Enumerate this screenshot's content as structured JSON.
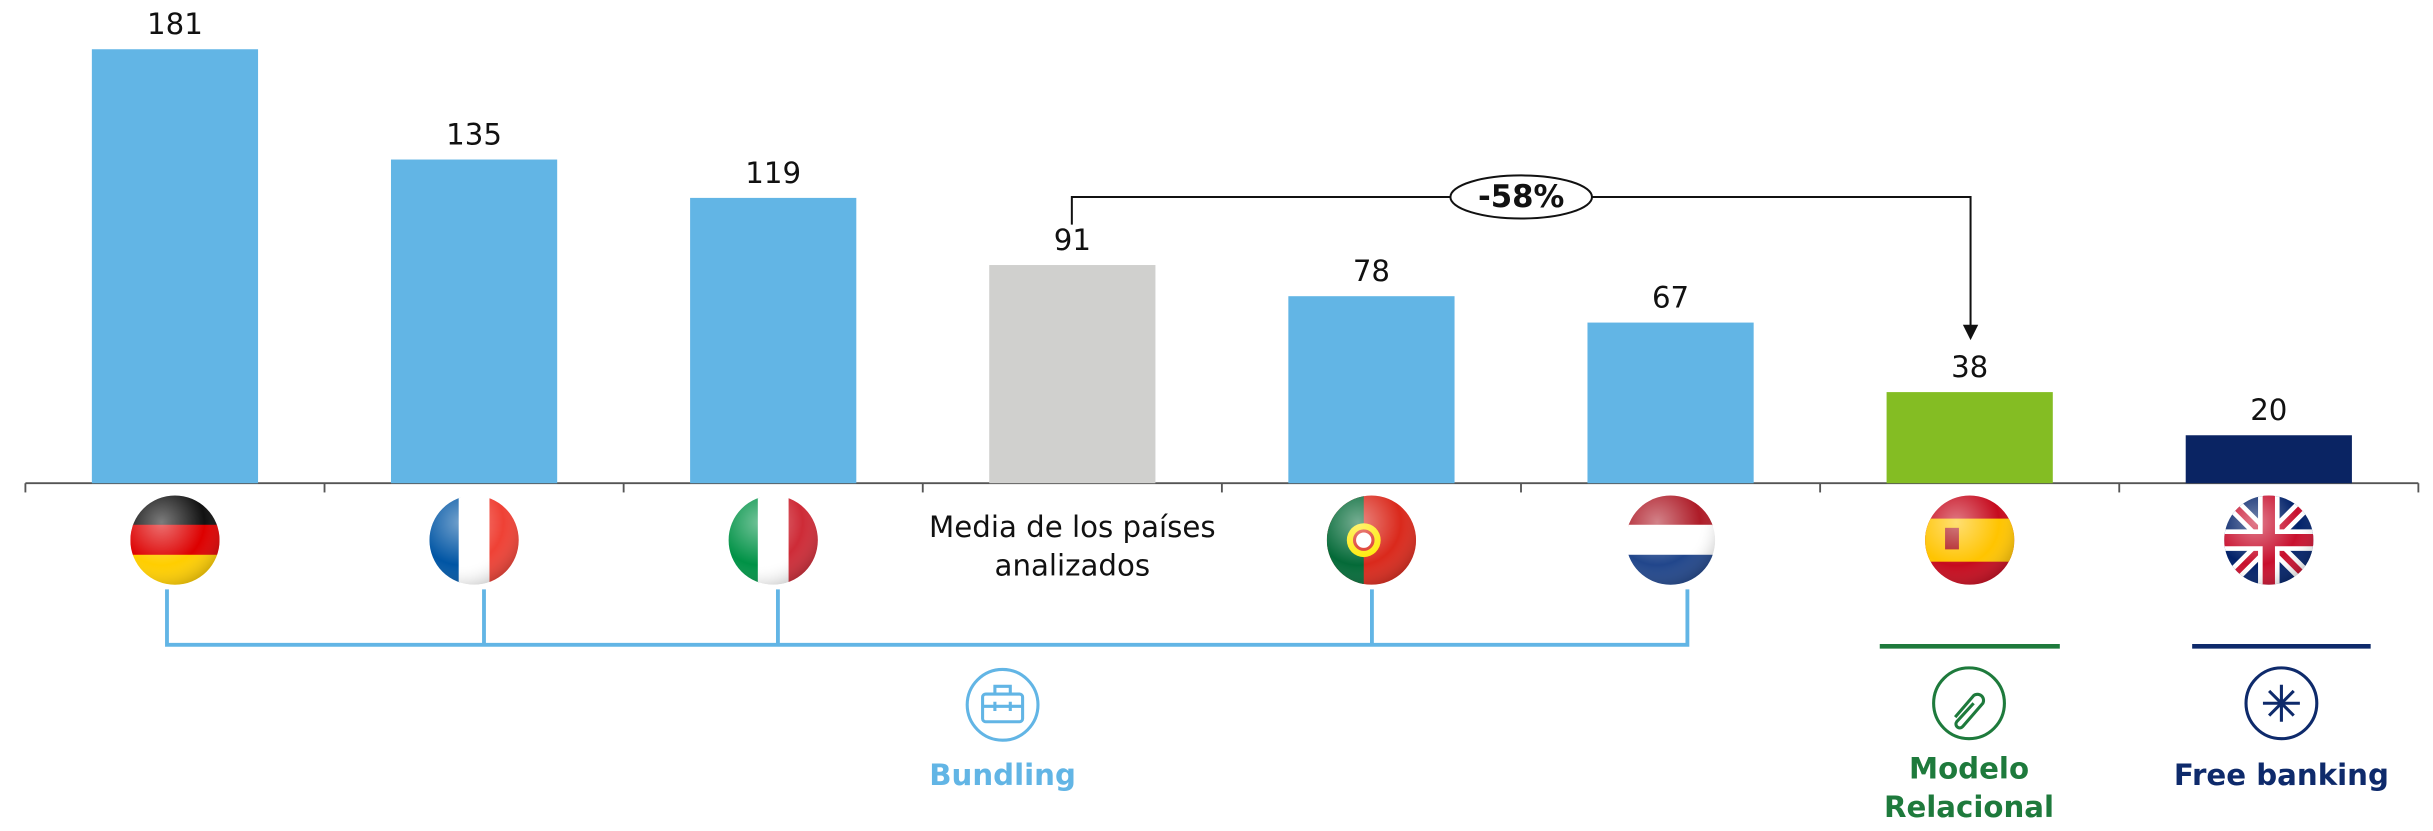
{
  "chart_data": {
    "type": "bar",
    "categories": [
      null,
      null,
      null,
      "Media de los países analizados",
      null,
      null,
      null,
      null
    ],
    "values": [
      181,
      135,
      119,
      91,
      78,
      67,
      38,
      20
    ],
    "colors": [
      "#62b5e5",
      "#62b5e5",
      "#62b5e5",
      "#d0d0ce",
      "#62b5e5",
      "#62b5e5",
      "#84bd23",
      "#0a2463"
    ],
    "annotation": "-58%",
    "groups": [
      {
        "label": "Bundling",
        "color": "#62b5e5"
      },
      {
        "label": "Modelo Relacional",
        "color": "#1e7a3c"
      },
      {
        "label": "Free banking",
        "color": "#0e2a6b"
      }
    ]
  }
}
